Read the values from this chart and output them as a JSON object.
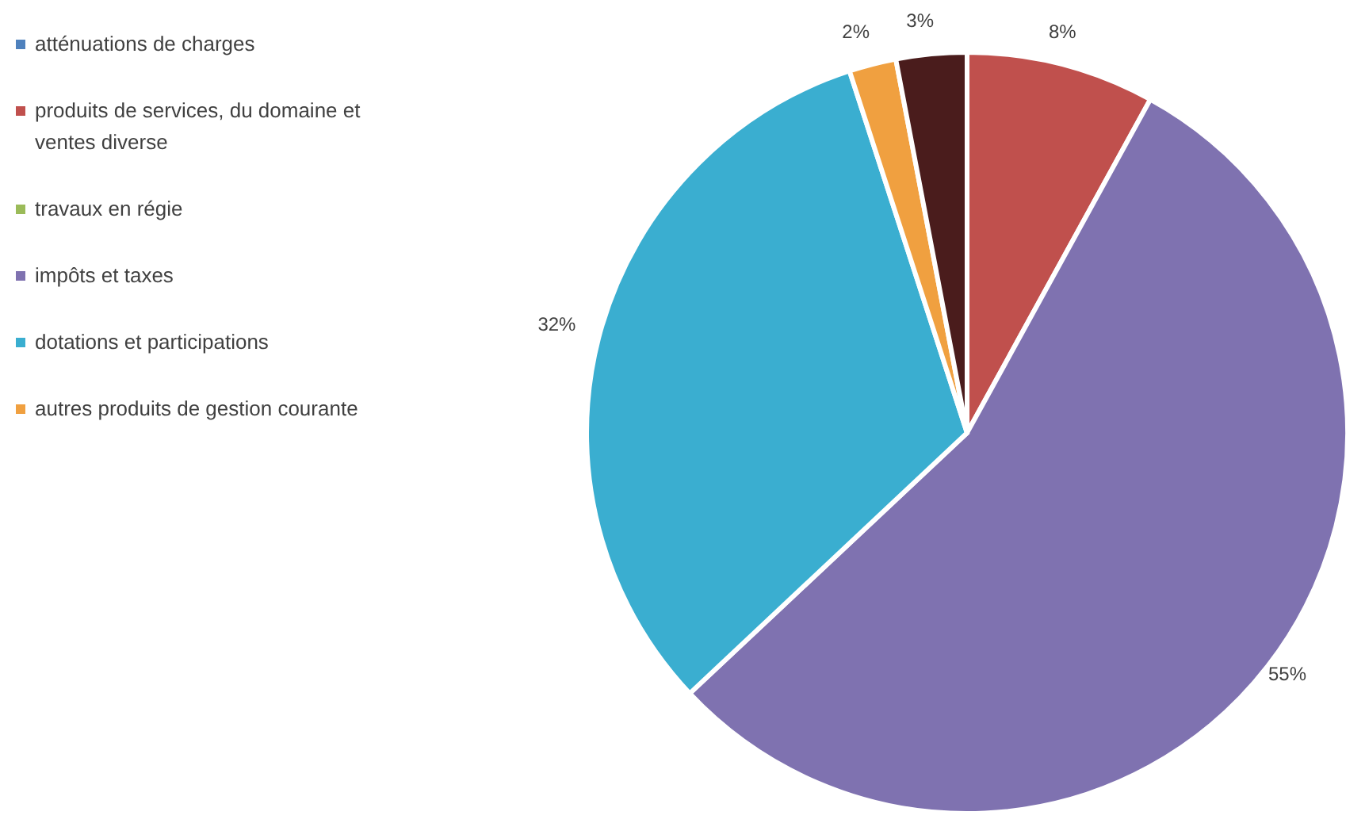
{
  "chart_data": {
    "type": "pie",
    "categories": [
      "atténuations de charges",
      "produits de services, du domaine et ventes diverse",
      "travaux en régie",
      "impôts et taxes",
      "dotations et participations",
      "autres produits de gestion courante",
      null
    ],
    "values": [
      0,
      8,
      0,
      55,
      32,
      2,
      3
    ],
    "colors": [
      "#4f81bd",
      "#c0504d",
      "#9bbb59",
      "#7f72b0",
      "#3aaed0",
      "#f0a040",
      "#4a1c1c"
    ],
    "value_labels": [
      null,
      "8%",
      null,
      "55%",
      "32%",
      "2%",
      "3%"
    ],
    "legend": "left"
  }
}
